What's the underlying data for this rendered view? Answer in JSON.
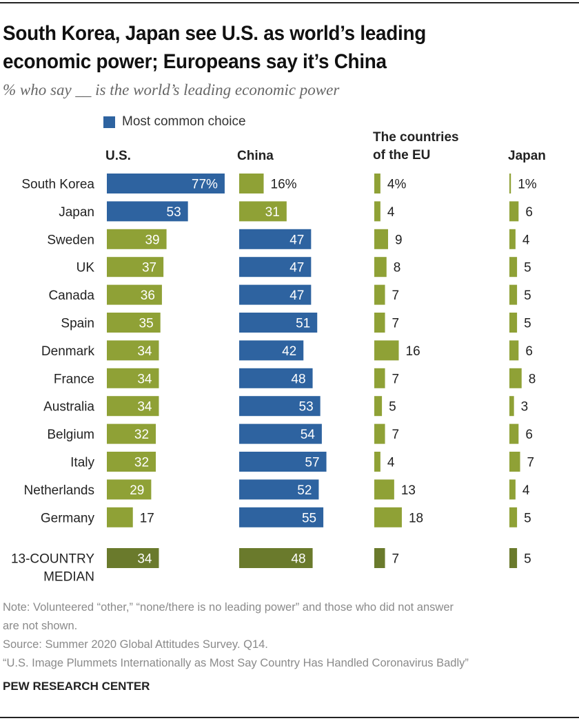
{
  "title": "South Korea, Japan see U.S. as world’s leading economic power; Europeans say it’s China",
  "title_lines": [
    "South Korea, Japan see U.S. as world’s leading",
    "economic power; Europeans say it’s China"
  ],
  "subtitle": "% who say __ is the world’s leading economic power",
  "legend": {
    "label": "Most common choice",
    "color": "#2e63a0"
  },
  "colors": {
    "most_common": "#2e63a0",
    "other": "#8fa136",
    "median": "#6a7a2c",
    "text_dark": "#222222",
    "text_light": "#ffffff"
  },
  "chart_data": {
    "type": "bar",
    "orientation": "horizontal",
    "title": "South Korea, Japan see U.S. as world’s leading economic power; Europeans say it’s China",
    "subtitle": "% who say __ is the world’s leading economic power",
    "xlabel": "",
    "ylabel": "",
    "xlim": [
      0,
      100
    ],
    "grid": false,
    "legend": {
      "entries": [
        "Most common choice"
      ],
      "placement": "top-left"
    },
    "categories": [
      "South Korea",
      "Japan",
      "Sweden",
      "UK",
      "Canada",
      "Spain",
      "Denmark",
      "France",
      "Australia",
      "Belgium",
      "Italy",
      "Netherlands",
      "Germany"
    ],
    "series": [
      {
        "name": "U.S.",
        "values": [
          77,
          53,
          39,
          37,
          36,
          35,
          34,
          34,
          34,
          32,
          32,
          29,
          17
        ],
        "median": 34
      },
      {
        "name": "China",
        "values": [
          16,
          31,
          47,
          47,
          47,
          51,
          42,
          48,
          53,
          54,
          57,
          52,
          55
        ],
        "median": 48
      },
      {
        "name": "The countries of the EU",
        "values": [
          4,
          4,
          9,
          8,
          7,
          7,
          16,
          7,
          5,
          7,
          4,
          13,
          18
        ],
        "median": 7
      },
      {
        "name": "Japan",
        "values": [
          1,
          6,
          4,
          5,
          5,
          5,
          6,
          8,
          3,
          6,
          7,
          4,
          5
        ],
        "median": 5
      }
    ],
    "median_label": [
      "13-COUNTRY",
      "MEDIAN"
    ],
    "first_row_suffix": "%"
  },
  "column_headers": [
    {
      "lines": [
        "U.S."
      ]
    },
    {
      "lines": [
        "China"
      ]
    },
    {
      "lines": [
        "The countries",
        "of the EU"
      ]
    },
    {
      "lines": [
        "Japan"
      ]
    }
  ],
  "notes": {
    "note_line1": "Note: Volunteered “other,” “none/there is no leading power” and those who did not answer",
    "note_line2": "are not shown.",
    "source": "Source: Summer 2020 Global Attitudes Survey. Q14.",
    "report": "“U.S. Image Plummets Internationally as Most Say Country Has Handled Coronavirus Badly”"
  },
  "brand": "PEW RESEARCH CENTER"
}
